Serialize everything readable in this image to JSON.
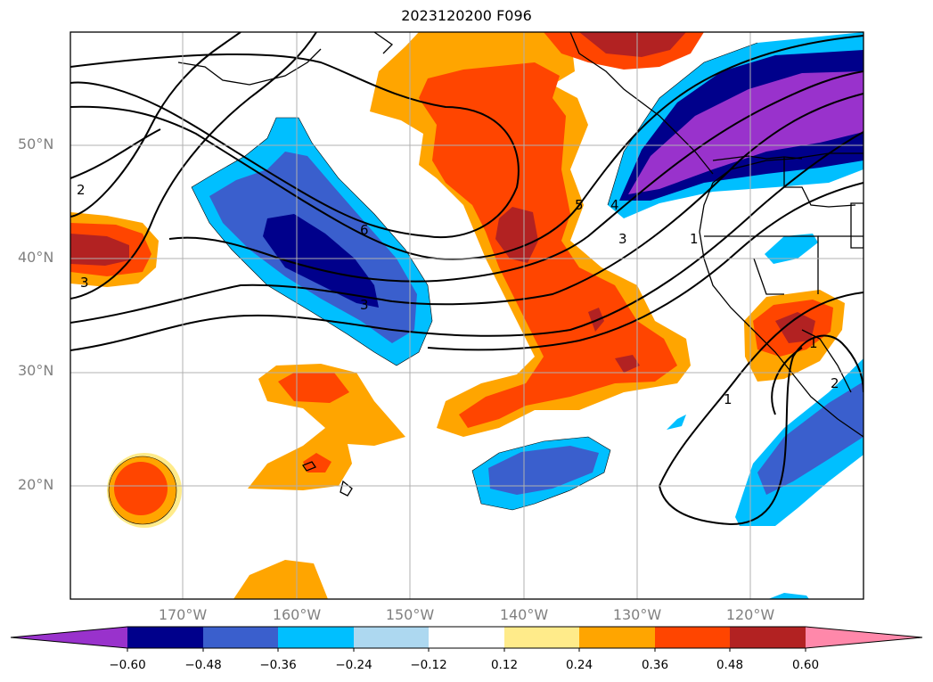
{
  "title": "2023120200 F096",
  "lat_labels": [
    "50°N",
    "40°N",
    "30°N",
    "20°N"
  ],
  "lon_labels": [
    "170°W",
    "160°W",
    "150°W",
    "140°W",
    "130°W",
    "120°W"
  ],
  "contour_labels": [
    "2",
    "3",
    "6",
    "3",
    "5",
    "4",
    "3",
    "1",
    "1",
    "1",
    "2"
  ],
  "colorbar": {
    "ticks": [
      "−0.60",
      "−0.48",
      "−0.36",
      "−0.24",
      "−0.12",
      "0.12",
      "0.24",
      "0.36",
      "0.48",
      "0.60"
    ],
    "colors": [
      "#9932cc",
      "#00008b",
      "#3a5fcd",
      "#00bfff",
      "#add8f0",
      "#ffffff",
      "#ffeb8a",
      "#ffa500",
      "#ff4500",
      "#b22222",
      "#ff88aa"
    ]
  }
}
